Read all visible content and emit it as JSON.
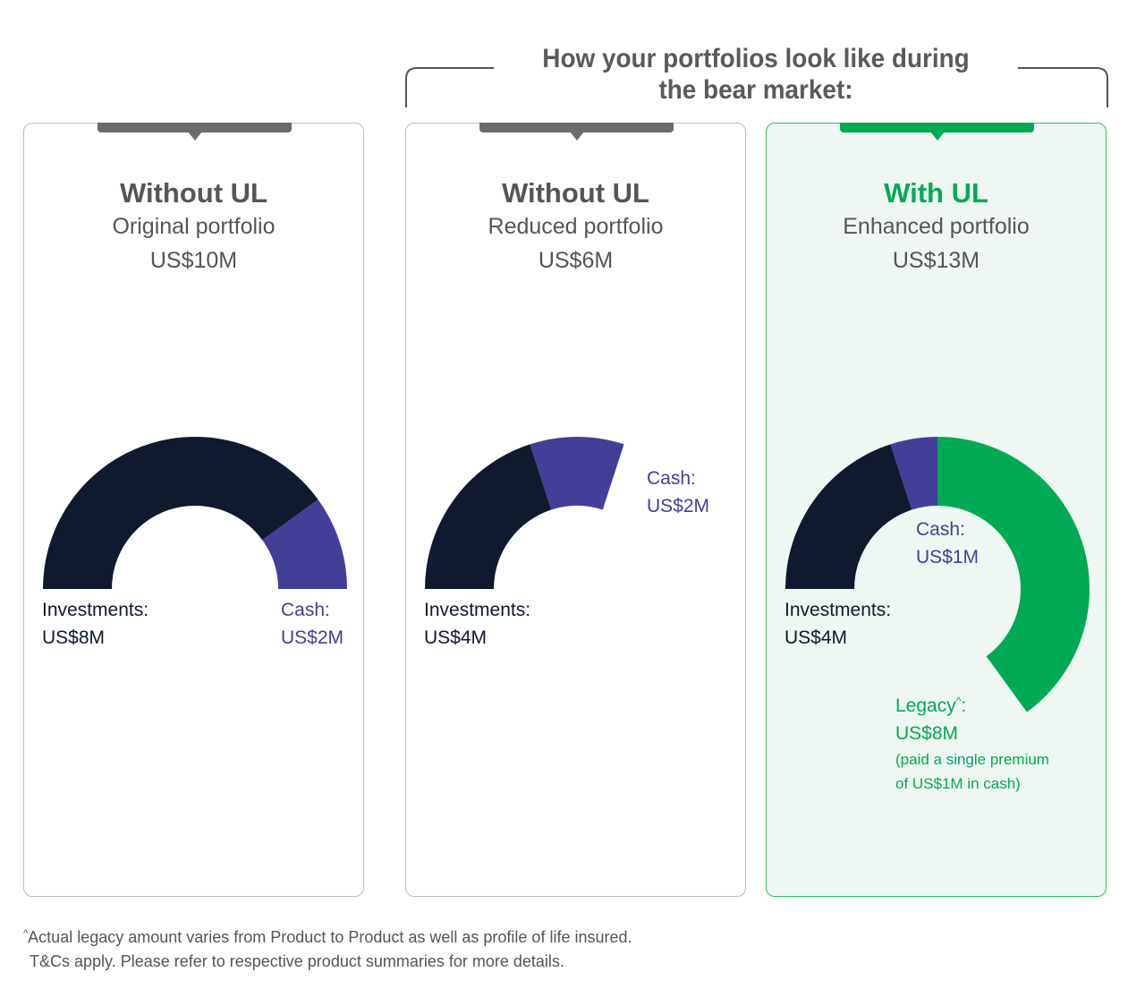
{
  "header": {
    "heading_line1": "How your portfolios look like during",
    "heading_line2": "the bear market:"
  },
  "colors": {
    "investments": "#0f1a2e",
    "cash": "#433f99",
    "legacy": "#00aa55",
    "card_border": "#bdbdbd",
    "highlight_background": "#eff7f2"
  },
  "cards": [
    {
      "title": "Without UL",
      "subtitle": "Original portfolio",
      "total": "US$10M",
      "labels": {
        "investments_name": "Investments:",
        "investments_value": "US$8M",
        "cash_name": "Cash:",
        "cash_value": "US$2M"
      }
    },
    {
      "title": "Without UL",
      "subtitle": "Reduced portfolio",
      "total": "US$6M",
      "labels": {
        "investments_name": "Investments:",
        "investments_value": "US$4M",
        "cash_name": "Cash:",
        "cash_value": "US$2M"
      }
    },
    {
      "title": "With UL",
      "subtitle": "Enhanced portfolio",
      "total": "US$13M",
      "labels": {
        "investments_name": "Investments:",
        "investments_value": "US$4M",
        "cash_name": "Cash:",
        "cash_value": "US$1M",
        "legacy_name": "Legacy",
        "legacy_mark": "^",
        "legacy_colon": ":",
        "legacy_value": "US$8M",
        "legacy_note1": "(paid a single premium",
        "legacy_note2": "of US$1M in cash)"
      }
    }
  ],
  "chart_data": [
    {
      "type": "pie",
      "title": "Without UL",
      "subtitle": "Original portfolio",
      "total": "US$10M",
      "series": [
        {
          "name": "Investments",
          "value": 8,
          "color": "#0f1a2e"
        },
        {
          "name": "Cash",
          "value": 2,
          "color": "#433f99"
        }
      ]
    },
    {
      "type": "pie",
      "title": "Without UL",
      "subtitle": "Reduced portfolio",
      "total": "US$6M",
      "series": [
        {
          "name": "Investments",
          "value": 4,
          "color": "#0f1a2e"
        },
        {
          "name": "Cash",
          "value": 2,
          "color": "#433f99"
        }
      ]
    },
    {
      "type": "pie",
      "title": "With UL",
      "subtitle": "Enhanced portfolio",
      "total": "US$13M",
      "series": [
        {
          "name": "Investments",
          "value": 4,
          "color": "#0f1a2e"
        },
        {
          "name": "Cash",
          "value": 1,
          "color": "#433f99"
        },
        {
          "name": "Legacy",
          "value": 8,
          "color": "#00aa55"
        }
      ]
    }
  ],
  "footnote": {
    "mark": "^",
    "line1": "Actual legacy amount varies from Product to Product as well as profile of life insured.",
    "line2": "T&Cs apply. Please refer to respective product summaries for more details."
  }
}
